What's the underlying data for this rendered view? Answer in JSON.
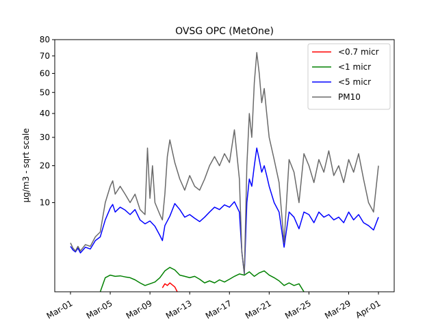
{
  "chart_data": {
    "type": "line",
    "title": "OVSG OPC (MetOne)",
    "ylabel": "µg/m3 - sqrt scale",
    "xlabel": "",
    "y_scale": "sqrt",
    "ylim": [
      0,
      80
    ],
    "y_ticks": [
      10,
      20,
      30,
      40,
      50,
      60,
      70,
      80
    ],
    "x_range": [
      "2024-02-28T10:00",
      "2024-04-02T14:00"
    ],
    "x_ticks": [
      {
        "date": "2024-03-01",
        "label": "Mar-01"
      },
      {
        "date": "2024-03-05",
        "label": "Mar-05"
      },
      {
        "date": "2024-03-09",
        "label": "Mar-09"
      },
      {
        "date": "2024-03-13",
        "label": "Mar-13"
      },
      {
        "date": "2024-03-17",
        "label": "Mar-17"
      },
      {
        "date": "2024-03-21",
        "label": "Mar-21"
      },
      {
        "date": "2024-03-25",
        "label": "Mar-25"
      },
      {
        "date": "2024-03-29",
        "label": "Mar-29"
      },
      {
        "date": "2024-04-01",
        "label": "Apr-01"
      }
    ],
    "legend_position": "top-right",
    "grid": false,
    "series": [
      {
        "name": "<0.7 micr",
        "color": "#ff0000",
        "points": [
          [
            "2024-03-10T06:00",
            0.02
          ],
          [
            "2024-03-10T12:00",
            0.08
          ],
          [
            "2024-03-10T18:00",
            0.05
          ],
          [
            "2024-03-11T00:00",
            0.1
          ],
          [
            "2024-03-11T06:00",
            0.06
          ],
          [
            "2024-03-11T12:00",
            0.03
          ],
          [
            "2024-03-11T18:00",
            0.0
          ]
        ]
      },
      {
        "name": "<1 micr",
        "color": "#008000",
        "points": [
          [
            "2024-03-04T00:00",
            0.0
          ],
          [
            "2024-03-04T12:00",
            0.25
          ],
          [
            "2024-03-05T00:00",
            0.35
          ],
          [
            "2024-03-05T12:00",
            0.3
          ],
          [
            "2024-03-06T00:00",
            0.32
          ],
          [
            "2024-03-06T12:00",
            0.28
          ],
          [
            "2024-03-07T00:00",
            0.25
          ],
          [
            "2024-03-07T12:00",
            0.18
          ],
          [
            "2024-03-08T00:00",
            0.1
          ],
          [
            "2024-03-08T12:00",
            0.05
          ],
          [
            "2024-03-09T00:00",
            0.08
          ],
          [
            "2024-03-09T12:00",
            0.12
          ],
          [
            "2024-03-10T00:00",
            0.25
          ],
          [
            "2024-03-10T12:00",
            0.55
          ],
          [
            "2024-03-11T00:00",
            0.75
          ],
          [
            "2024-03-11T12:00",
            0.6
          ],
          [
            "2024-03-12T00:00",
            0.35
          ],
          [
            "2024-03-12T12:00",
            0.3
          ],
          [
            "2024-03-13T00:00",
            0.25
          ],
          [
            "2024-03-13T12:00",
            0.3
          ],
          [
            "2024-03-14T00:00",
            0.2
          ],
          [
            "2024-03-14T12:00",
            0.1
          ],
          [
            "2024-03-15T00:00",
            0.15
          ],
          [
            "2024-03-15T12:00",
            0.1
          ],
          [
            "2024-03-16T00:00",
            0.18
          ],
          [
            "2024-03-16T12:00",
            0.12
          ],
          [
            "2024-03-17T00:00",
            0.2
          ],
          [
            "2024-03-17T12:00",
            0.3
          ],
          [
            "2024-03-18T00:00",
            0.4
          ],
          [
            "2024-03-18T12:00",
            0.35
          ],
          [
            "2024-03-19T00:00",
            0.5
          ],
          [
            "2024-03-19T12:00",
            0.3
          ],
          [
            "2024-03-20T00:00",
            0.45
          ],
          [
            "2024-03-20T12:00",
            0.55
          ],
          [
            "2024-03-21T00:00",
            0.35
          ],
          [
            "2024-03-21T12:00",
            0.25
          ],
          [
            "2024-03-22T00:00",
            0.15
          ],
          [
            "2024-03-22T12:00",
            0.05
          ],
          [
            "2024-03-23T00:00",
            0.1
          ],
          [
            "2024-03-23T12:00",
            0.05
          ],
          [
            "2024-03-24T00:00",
            0.08
          ],
          [
            "2024-03-24T12:00",
            0.0
          ]
        ]
      },
      {
        "name": "<5 micr",
        "color": "#0000ff",
        "points": [
          [
            "2024-03-01T00:00",
            2.6
          ],
          [
            "2024-03-01T06:00",
            2.2
          ],
          [
            "2024-03-01T12:00",
            2.0
          ],
          [
            "2024-03-01T18:00",
            2.4
          ],
          [
            "2024-03-02T00:00",
            1.9
          ],
          [
            "2024-03-02T12:00",
            2.5
          ],
          [
            "2024-03-03T00:00",
            2.3
          ],
          [
            "2024-03-03T12:00",
            3.3
          ],
          [
            "2024-03-04T00:00",
            3.8
          ],
          [
            "2024-03-04T12:00",
            6.5
          ],
          [
            "2024-03-05T00:00",
            8.8
          ],
          [
            "2024-03-05T06:00",
            9.6
          ],
          [
            "2024-03-05T12:00",
            8.0
          ],
          [
            "2024-03-06T00:00",
            9.0
          ],
          [
            "2024-03-06T12:00",
            8.4
          ],
          [
            "2024-03-07T00:00",
            7.5
          ],
          [
            "2024-03-07T12:00",
            8.5
          ],
          [
            "2024-03-08T00:00",
            6.5
          ],
          [
            "2024-03-08T12:00",
            5.8
          ],
          [
            "2024-03-09T00:00",
            6.3
          ],
          [
            "2024-03-09T12:00",
            5.4
          ],
          [
            "2024-03-10T00:00",
            4.0
          ],
          [
            "2024-03-10T06:00",
            3.3
          ],
          [
            "2024-03-10T12:00",
            5.5
          ],
          [
            "2024-03-11T00:00",
            7.2
          ],
          [
            "2024-03-11T12:00",
            9.8
          ],
          [
            "2024-03-12T00:00",
            8.5
          ],
          [
            "2024-03-12T12:00",
            7.0
          ],
          [
            "2024-03-13T00:00",
            7.5
          ],
          [
            "2024-03-13T12:00",
            6.8
          ],
          [
            "2024-03-14T00:00",
            6.2
          ],
          [
            "2024-03-14T12:00",
            7.0
          ],
          [
            "2024-03-15T00:00",
            8.0
          ],
          [
            "2024-03-15T12:00",
            9.0
          ],
          [
            "2024-03-16T00:00",
            8.5
          ],
          [
            "2024-03-16T12:00",
            9.5
          ],
          [
            "2024-03-17T00:00",
            9.0
          ],
          [
            "2024-03-17T12:00",
            10.2
          ],
          [
            "2024-03-18T00:00",
            8.0
          ],
          [
            "2024-03-18T06:00",
            2.0
          ],
          [
            "2024-03-18T12:00",
            0.4
          ],
          [
            "2024-03-18T18:00",
            10.0
          ],
          [
            "2024-03-19T00:00",
            16.0
          ],
          [
            "2024-03-19T06:00",
            14.0
          ],
          [
            "2024-03-19T12:00",
            20.0
          ],
          [
            "2024-03-19T18:00",
            26.0
          ],
          [
            "2024-03-20T00:00",
            22.0
          ],
          [
            "2024-03-20T06:00",
            18.0
          ],
          [
            "2024-03-20T12:00",
            20.0
          ],
          [
            "2024-03-20T18:00",
            17.0
          ],
          [
            "2024-03-21T00:00",
            14.0
          ],
          [
            "2024-03-21T12:00",
            10.0
          ],
          [
            "2024-03-22T00:00",
            8.0
          ],
          [
            "2024-03-22T12:00",
            2.5
          ],
          [
            "2024-03-23T00:00",
            8.0
          ],
          [
            "2024-03-23T12:00",
            7.0
          ],
          [
            "2024-03-24T00:00",
            5.0
          ],
          [
            "2024-03-24T12:00",
            8.0
          ],
          [
            "2024-03-25T00:00",
            7.5
          ],
          [
            "2024-03-25T12:00",
            6.0
          ],
          [
            "2024-03-26T00:00",
            8.0
          ],
          [
            "2024-03-26T12:00",
            7.0
          ],
          [
            "2024-03-27T00:00",
            7.5
          ],
          [
            "2024-03-27T12:00",
            6.5
          ],
          [
            "2024-03-28T00:00",
            7.0
          ],
          [
            "2024-03-28T12:00",
            6.0
          ],
          [
            "2024-03-29T00:00",
            8.0
          ],
          [
            "2024-03-29T12:00",
            6.5
          ],
          [
            "2024-03-30T00:00",
            7.5
          ],
          [
            "2024-03-30T12:00",
            6.0
          ],
          [
            "2024-03-31T00:00",
            5.5
          ],
          [
            "2024-03-31T12:00",
            4.8
          ],
          [
            "2024-04-01T00:00",
            7.0
          ]
        ]
      },
      {
        "name": "PM10",
        "color": "#696969",
        "points": [
          [
            "2024-03-01T00:00",
            3.0
          ],
          [
            "2024-03-01T06:00",
            2.4
          ],
          [
            "2024-03-01T12:00",
            2.1
          ],
          [
            "2024-03-01T18:00",
            2.6
          ],
          [
            "2024-03-02T00:00",
            2.1
          ],
          [
            "2024-03-02T12:00",
            2.8
          ],
          [
            "2024-03-03T00:00",
            2.6
          ],
          [
            "2024-03-03T12:00",
            3.8
          ],
          [
            "2024-03-04T00:00",
            4.5
          ],
          [
            "2024-03-04T12:00",
            10.0
          ],
          [
            "2024-03-05T00:00",
            14.0
          ],
          [
            "2024-03-05T06:00",
            15.5
          ],
          [
            "2024-03-05T12:00",
            12.0
          ],
          [
            "2024-03-06T00:00",
            14.0
          ],
          [
            "2024-03-06T12:00",
            12.0
          ],
          [
            "2024-03-07T00:00",
            10.0
          ],
          [
            "2024-03-07T12:00",
            12.0
          ],
          [
            "2024-03-08T00:00",
            8.5
          ],
          [
            "2024-03-08T12:00",
            7.5
          ],
          [
            "2024-03-08T18:00",
            26.0
          ],
          [
            "2024-03-09T00:00",
            11.0
          ],
          [
            "2024-03-09T06:00",
            20.0
          ],
          [
            "2024-03-09T12:00",
            10.0
          ],
          [
            "2024-03-10T00:00",
            7.5
          ],
          [
            "2024-03-10T06:00",
            6.5
          ],
          [
            "2024-03-10T12:00",
            12.0
          ],
          [
            "2024-03-10T18:00",
            23.0
          ],
          [
            "2024-03-11T00:00",
            29.0
          ],
          [
            "2024-03-11T12:00",
            21.0
          ],
          [
            "2024-03-12T00:00",
            16.0
          ],
          [
            "2024-03-12T12:00",
            13.0
          ],
          [
            "2024-03-13T00:00",
            17.0
          ],
          [
            "2024-03-13T12:00",
            14.0
          ],
          [
            "2024-03-14T00:00",
            13.0
          ],
          [
            "2024-03-14T12:00",
            16.0
          ],
          [
            "2024-03-15T00:00",
            20.0
          ],
          [
            "2024-03-15T12:00",
            23.0
          ],
          [
            "2024-03-16T00:00",
            20.0
          ],
          [
            "2024-03-16T12:00",
            24.0
          ],
          [
            "2024-03-17T00:00",
            21.0
          ],
          [
            "2024-03-17T12:00",
            33.0
          ],
          [
            "2024-03-18T00:00",
            16.0
          ],
          [
            "2024-03-18T06:00",
            2.0
          ],
          [
            "2024-03-18T12:00",
            0.4
          ],
          [
            "2024-03-18T18:00",
            20.0
          ],
          [
            "2024-03-19T00:00",
            40.0
          ],
          [
            "2024-03-19T06:00",
            30.0
          ],
          [
            "2024-03-19T12:00",
            55.0
          ],
          [
            "2024-03-19T18:00",
            72.0
          ],
          [
            "2024-03-20T00:00",
            60.0
          ],
          [
            "2024-03-20T06:00",
            45.0
          ],
          [
            "2024-03-20T12:00",
            52.0
          ],
          [
            "2024-03-20T18:00",
            40.0
          ],
          [
            "2024-03-21T00:00",
            30.0
          ],
          [
            "2024-03-21T12:00",
            22.0
          ],
          [
            "2024-03-22T00:00",
            15.0
          ],
          [
            "2024-03-22T12:00",
            3.0
          ],
          [
            "2024-03-23T00:00",
            22.0
          ],
          [
            "2024-03-23T12:00",
            18.0
          ],
          [
            "2024-03-24T00:00",
            10.0
          ],
          [
            "2024-03-24T12:00",
            24.0
          ],
          [
            "2024-03-25T00:00",
            20.0
          ],
          [
            "2024-03-25T12:00",
            15.0
          ],
          [
            "2024-03-26T00:00",
            22.0
          ],
          [
            "2024-03-26T12:00",
            18.0
          ],
          [
            "2024-03-27T00:00",
            25.0
          ],
          [
            "2024-03-27T12:00",
            17.0
          ],
          [
            "2024-03-28T00:00",
            20.0
          ],
          [
            "2024-03-28T12:00",
            15.0
          ],
          [
            "2024-03-29T00:00",
            22.0
          ],
          [
            "2024-03-29T12:00",
            18.0
          ],
          [
            "2024-03-30T00:00",
            24.0
          ],
          [
            "2024-03-30T12:00",
            16.0
          ],
          [
            "2024-03-31T00:00",
            10.0
          ],
          [
            "2024-03-31T12:00",
            8.0
          ],
          [
            "2024-04-01T00:00",
            20.0
          ]
        ]
      }
    ]
  }
}
